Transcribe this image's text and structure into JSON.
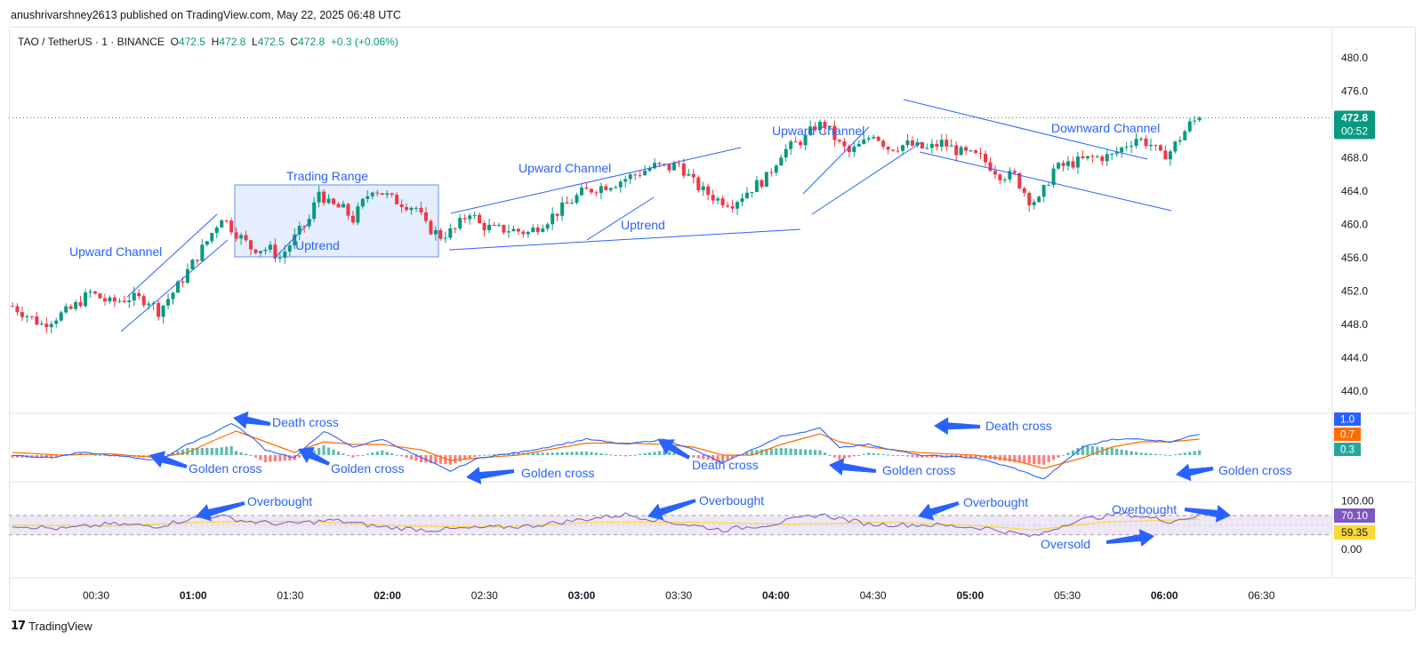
{
  "header": {
    "published_by": "anushrivarshney2613 published on TradingView.com, May 22, 2025 06:48 UTC"
  },
  "legend": {
    "symbol": "TAO / TetherUS · 1 · BINANCE",
    "o_label": "O",
    "o_value": "472.5",
    "h_label": "H",
    "h_value": "472.8",
    "l_label": "L",
    "l_value": "472.5",
    "c_label": "C",
    "c_value": "472.8",
    "change": "+0.3 (+0.06%)"
  },
  "colors": {
    "up": "#089981",
    "down": "#f23645",
    "annotation": "#2962ff",
    "macd_line": "#2962ff",
    "signal_line": "#ff6d00",
    "rsi_line": "#7e57c2",
    "rsi_ma": "#fdd835",
    "rsi_band": "#ede7f6"
  },
  "footer": {
    "brand": "TradingView",
    "logo_icon": "tv-logo-icon"
  },
  "chart_data": {
    "type": "candlestick",
    "price_axis": {
      "ticks": [
        "480.0",
        "476.0",
        "472.0",
        "468.0",
        "464.0",
        "460.0",
        "456.0",
        "452.0",
        "448.0",
        "444.0",
        "440.0"
      ],
      "ylim": [
        437,
        481
      ]
    },
    "last_price": {
      "value": "472.8",
      "countdown": "00:52"
    },
    "time_axis": {
      "ticks": [
        {
          "label": "00:30",
          "bold": false
        },
        {
          "label": "01:00",
          "bold": true
        },
        {
          "label": "01:30",
          "bold": false
        },
        {
          "label": "02:00",
          "bold": true
        },
        {
          "label": "02:30",
          "bold": false
        },
        {
          "label": "03:00",
          "bold": true
        },
        {
          "label": "03:30",
          "bold": false
        },
        {
          "label": "04:00",
          "bold": true
        },
        {
          "label": "04:30",
          "bold": false
        },
        {
          "label": "05:00",
          "bold": true
        },
        {
          "label": "05:30",
          "bold": false
        },
        {
          "label": "06:00",
          "bold": true
        },
        {
          "label": "06:30",
          "bold": false
        }
      ]
    },
    "price_path": [
      [
        0,
        450.2
      ],
      [
        6,
        448.0
      ],
      [
        12,
        449.8
      ],
      [
        16,
        451.8
      ],
      [
        20,
        450.6
      ],
      [
        24,
        451.2
      ],
      [
        28,
        450.9
      ],
      [
        30,
        449.6
      ],
      [
        34,
        452.6
      ],
      [
        40,
        458.0
      ],
      [
        43,
        461.0
      ],
      [
        45,
        459.6
      ],
      [
        49,
        457.2
      ],
      [
        53,
        457.0
      ],
      [
        55,
        456.0
      ],
      [
        58,
        458.4
      ],
      [
        61,
        460.6
      ],
      [
        63,
        464.0
      ],
      [
        65,
        462.4
      ],
      [
        68,
        461.8
      ],
      [
        70,
        460.6
      ],
      [
        72,
        462.6
      ],
      [
        74,
        464.4
      ],
      [
        76,
        463.8
      ],
      [
        78,
        463.0
      ],
      [
        83,
        462.0
      ],
      [
        85,
        459.8
      ],
      [
        88,
        458.6
      ],
      [
        91,
        459.4
      ],
      [
        94,
        461.6
      ],
      [
        96,
        460.0
      ],
      [
        99,
        459.4
      ],
      [
        102,
        459.4
      ],
      [
        106,
        459.0
      ],
      [
        110,
        460.6
      ],
      [
        114,
        462.4
      ],
      [
        117,
        463.8
      ],
      [
        120,
        464.4
      ],
      [
        124,
        465.0
      ],
      [
        128,
        466.0
      ],
      [
        132,
        467.0
      ],
      [
        135,
        466.8
      ],
      [
        137,
        467.3
      ],
      [
        140,
        465.0
      ],
      [
        142,
        464.0
      ],
      [
        145,
        463.0
      ],
      [
        148,
        462.6
      ],
      [
        152,
        464.4
      ],
      [
        155,
        465.6
      ],
      [
        158,
        468.6
      ],
      [
        163,
        470.4
      ],
      [
        165,
        471.8
      ],
      [
        167,
        472.0
      ],
      [
        170,
        469.6
      ],
      [
        172,
        468.6
      ],
      [
        175,
        469.8
      ],
      [
        177,
        471.0
      ],
      [
        180,
        469.2
      ],
      [
        184,
        469.6
      ],
      [
        188,
        469.0
      ],
      [
        191,
        469.8
      ],
      [
        195,
        468.6
      ],
      [
        199,
        468.0
      ],
      [
        203,
        466.0
      ],
      [
        206,
        465.8
      ],
      [
        209,
        463.0
      ],
      [
        211,
        462.8
      ],
      [
        214,
        466.6
      ],
      [
        218,
        467.4
      ],
      [
        222,
        468.0
      ],
      [
        226,
        468.2
      ],
      [
        229,
        469.6
      ],
      [
        231,
        470.4
      ],
      [
        234,
        469.6
      ],
      [
        236,
        468.2
      ],
      [
        238,
        468.8
      ],
      [
        240,
        470.4
      ],
      [
        242,
        472.0
      ],
      [
        244,
        472.8
      ]
    ],
    "macd_path": {
      "macd": [
        [
          0,
          0.0
        ],
        [
          8,
          -0.1
        ],
        [
          14,
          0.1
        ],
        [
          20,
          0.0
        ],
        [
          30,
          -0.2
        ],
        [
          36,
          0.4
        ],
        [
          42,
          0.9
        ],
        [
          45,
          1.2
        ],
        [
          49,
          0.7
        ],
        [
          52,
          0.2
        ],
        [
          58,
          -0.1
        ],
        [
          64,
          0.9
        ],
        [
          70,
          0.3
        ],
        [
          76,
          0.6
        ],
        [
          84,
          -0.1
        ],
        [
          90,
          -0.6
        ],
        [
          96,
          -0.1
        ],
        [
          104,
          0.1
        ],
        [
          110,
          0.3
        ],
        [
          118,
          0.6
        ],
        [
          126,
          0.4
        ],
        [
          134,
          0.6
        ],
        [
          140,
          0.2
        ],
        [
          146,
          -0.3
        ],
        [
          152,
          0.2
        ],
        [
          158,
          0.7
        ],
        [
          166,
          1.0
        ],
        [
          170,
          0.3
        ],
        [
          176,
          0.4
        ],
        [
          186,
          0.0
        ],
        [
          198,
          -0.1
        ],
        [
          206,
          -0.5
        ],
        [
          212,
          -0.9
        ],
        [
          220,
          0.3
        ],
        [
          226,
          0.6
        ],
        [
          232,
          0.6
        ],
        [
          238,
          0.5
        ],
        [
          244,
          0.8
        ]
      ],
      "signal": [
        [
          0,
          0.1
        ],
        [
          10,
          0.0
        ],
        [
          20,
          0.05
        ],
        [
          30,
          -0.1
        ],
        [
          36,
          0.1
        ],
        [
          42,
          0.6
        ],
        [
          46,
          0.9
        ],
        [
          52,
          0.5
        ],
        [
          58,
          0.1
        ],
        [
          64,
          0.5
        ],
        [
          70,
          0.4
        ],
        [
          76,
          0.4
        ],
        [
          84,
          0.2
        ],
        [
          90,
          -0.2
        ],
        [
          96,
          -0.1
        ],
        [
          104,
          0.0
        ],
        [
          110,
          0.2
        ],
        [
          118,
          0.45
        ],
        [
          126,
          0.45
        ],
        [
          134,
          0.4
        ],
        [
          140,
          0.3
        ],
        [
          146,
          0.0
        ],
        [
          152,
          0.0
        ],
        [
          158,
          0.4
        ],
        [
          166,
          0.8
        ],
        [
          170,
          0.5
        ],
        [
          176,
          0.3
        ],
        [
          186,
          0.1
        ],
        [
          198,
          0.0
        ],
        [
          206,
          -0.2
        ],
        [
          212,
          -0.5
        ],
        [
          220,
          -0.1
        ],
        [
          226,
          0.3
        ],
        [
          232,
          0.5
        ],
        [
          238,
          0.5
        ],
        [
          244,
          0.6
        ]
      ],
      "badges": [
        {
          "value": "1.0",
          "color": "#2962ff"
        },
        {
          "value": "0.7",
          "color": "#ff6d00"
        },
        {
          "value": "0.3",
          "color": "#26a69a"
        }
      ]
    },
    "rsi": {
      "ticks": [
        "100.00",
        "0.00"
      ],
      "overbought": 70,
      "oversold": 30,
      "values": [
        [
          0,
          50
        ],
        [
          10,
          42
        ],
        [
          20,
          52
        ],
        [
          30,
          48
        ],
        [
          36,
          62
        ],
        [
          42,
          70
        ],
        [
          48,
          58
        ],
        [
          56,
          52
        ],
        [
          66,
          60
        ],
        [
          76,
          46
        ],
        [
          86,
          40
        ],
        [
          96,
          44
        ],
        [
          106,
          48
        ],
        [
          116,
          60
        ],
        [
          126,
          72
        ],
        [
          136,
          55
        ],
        [
          146,
          40
        ],
        [
          156,
          52
        ],
        [
          166,
          72
        ],
        [
          176,
          52
        ],
        [
          190,
          50
        ],
        [
          200,
          44
        ],
        [
          210,
          26
        ],
        [
          218,
          58
        ],
        [
          228,
          74
        ],
        [
          238,
          58
        ],
        [
          244,
          70
        ]
      ],
      "ma": [
        [
          0,
          50
        ],
        [
          20,
          48
        ],
        [
          40,
          56
        ],
        [
          60,
          58
        ],
        [
          80,
          48
        ],
        [
          100,
          46
        ],
        [
          120,
          56
        ],
        [
          140,
          56
        ],
        [
          160,
          52
        ],
        [
          180,
          56
        ],
        [
          200,
          48
        ],
        [
          210,
          40
        ],
        [
          224,
          56
        ],
        [
          244,
          62
        ]
      ],
      "badges": [
        {
          "value": "70.10",
          "color": "#7e57c2",
          "text": "#ffffff"
        },
        {
          "value": "59.35",
          "color": "#fdd835",
          "text": "#131722"
        }
      ]
    },
    "annotations": {
      "trading_range": "Trading Range",
      "upward_channel_1": "Upward Channel",
      "uptrend_1": "Uptrend",
      "upward_channel_2": "Upward Channel",
      "uptrend_2": "Uptrend",
      "upward_channel_3": "Upward Channel",
      "downward_channel": "Downward Channel",
      "death_cross_1": "Death cross",
      "golden_cross_1": "Golden cross",
      "golden_cross_2": "Golden cross",
      "golden_cross_3": "Golden cross",
      "death_cross_2": "Death cross",
      "golden_cross_4": "Golden cross",
      "death_cross_3": "Death cross",
      "golden_cross_5": "Golden cross",
      "overbought_1": "Overbought",
      "overbought_2": "Overbought",
      "overbought_3": "Overbought",
      "overbought_4": "Overbought",
      "oversold_1": "Oversold"
    }
  }
}
